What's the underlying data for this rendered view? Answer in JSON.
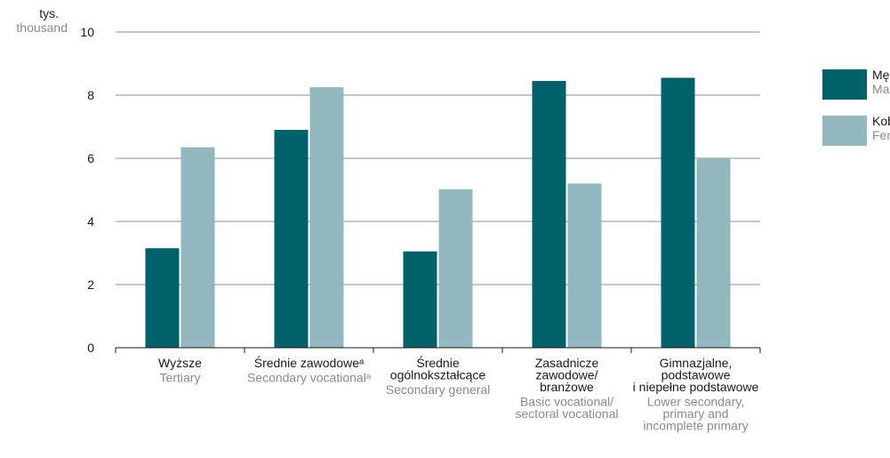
{
  "chart_data": {
    "type": "bar",
    "y_unit": [
      "tys.",
      "thousand"
    ],
    "ylim": [
      0,
      10
    ],
    "yticks": [
      0,
      2,
      4,
      6,
      8,
      10
    ],
    "grid": true,
    "legend_placement": "right",
    "categories": [
      {
        "pl": [
          "Wyższe"
        ],
        "en": [
          "Tertiary"
        ]
      },
      {
        "pl": [
          "Średnie zawodoweᵃ"
        ],
        "en": [
          "Secondary vocationalᵃ"
        ]
      },
      {
        "pl": [
          "Średnie",
          "ogólnokształcące"
        ],
        "en": [
          "Secondary general"
        ]
      },
      {
        "pl": [
          "Zasadnicze",
          "zawodowe/",
          "branżowe"
        ],
        "en": [
          "Basic vocational/",
          "sectoral vocational"
        ]
      },
      {
        "pl": [
          "Gimnazjalne,",
          "podstawowe",
          "i niepełne podstawowe"
        ],
        "en": [
          "Lower secondary,",
          "primary and",
          "incomplete primary"
        ]
      }
    ],
    "series": [
      {
        "name": "Mężczyźni",
        "name_en": "Males",
        "color": "#01616b",
        "values": [
          3.15,
          6.9,
          3.05,
          8.45,
          8.55
        ]
      },
      {
        "name": "Kobiety",
        "name_en": "Females",
        "color": "#93b8bf",
        "values": [
          6.35,
          8.25,
          5.02,
          5.2,
          6.0
        ]
      }
    ]
  }
}
